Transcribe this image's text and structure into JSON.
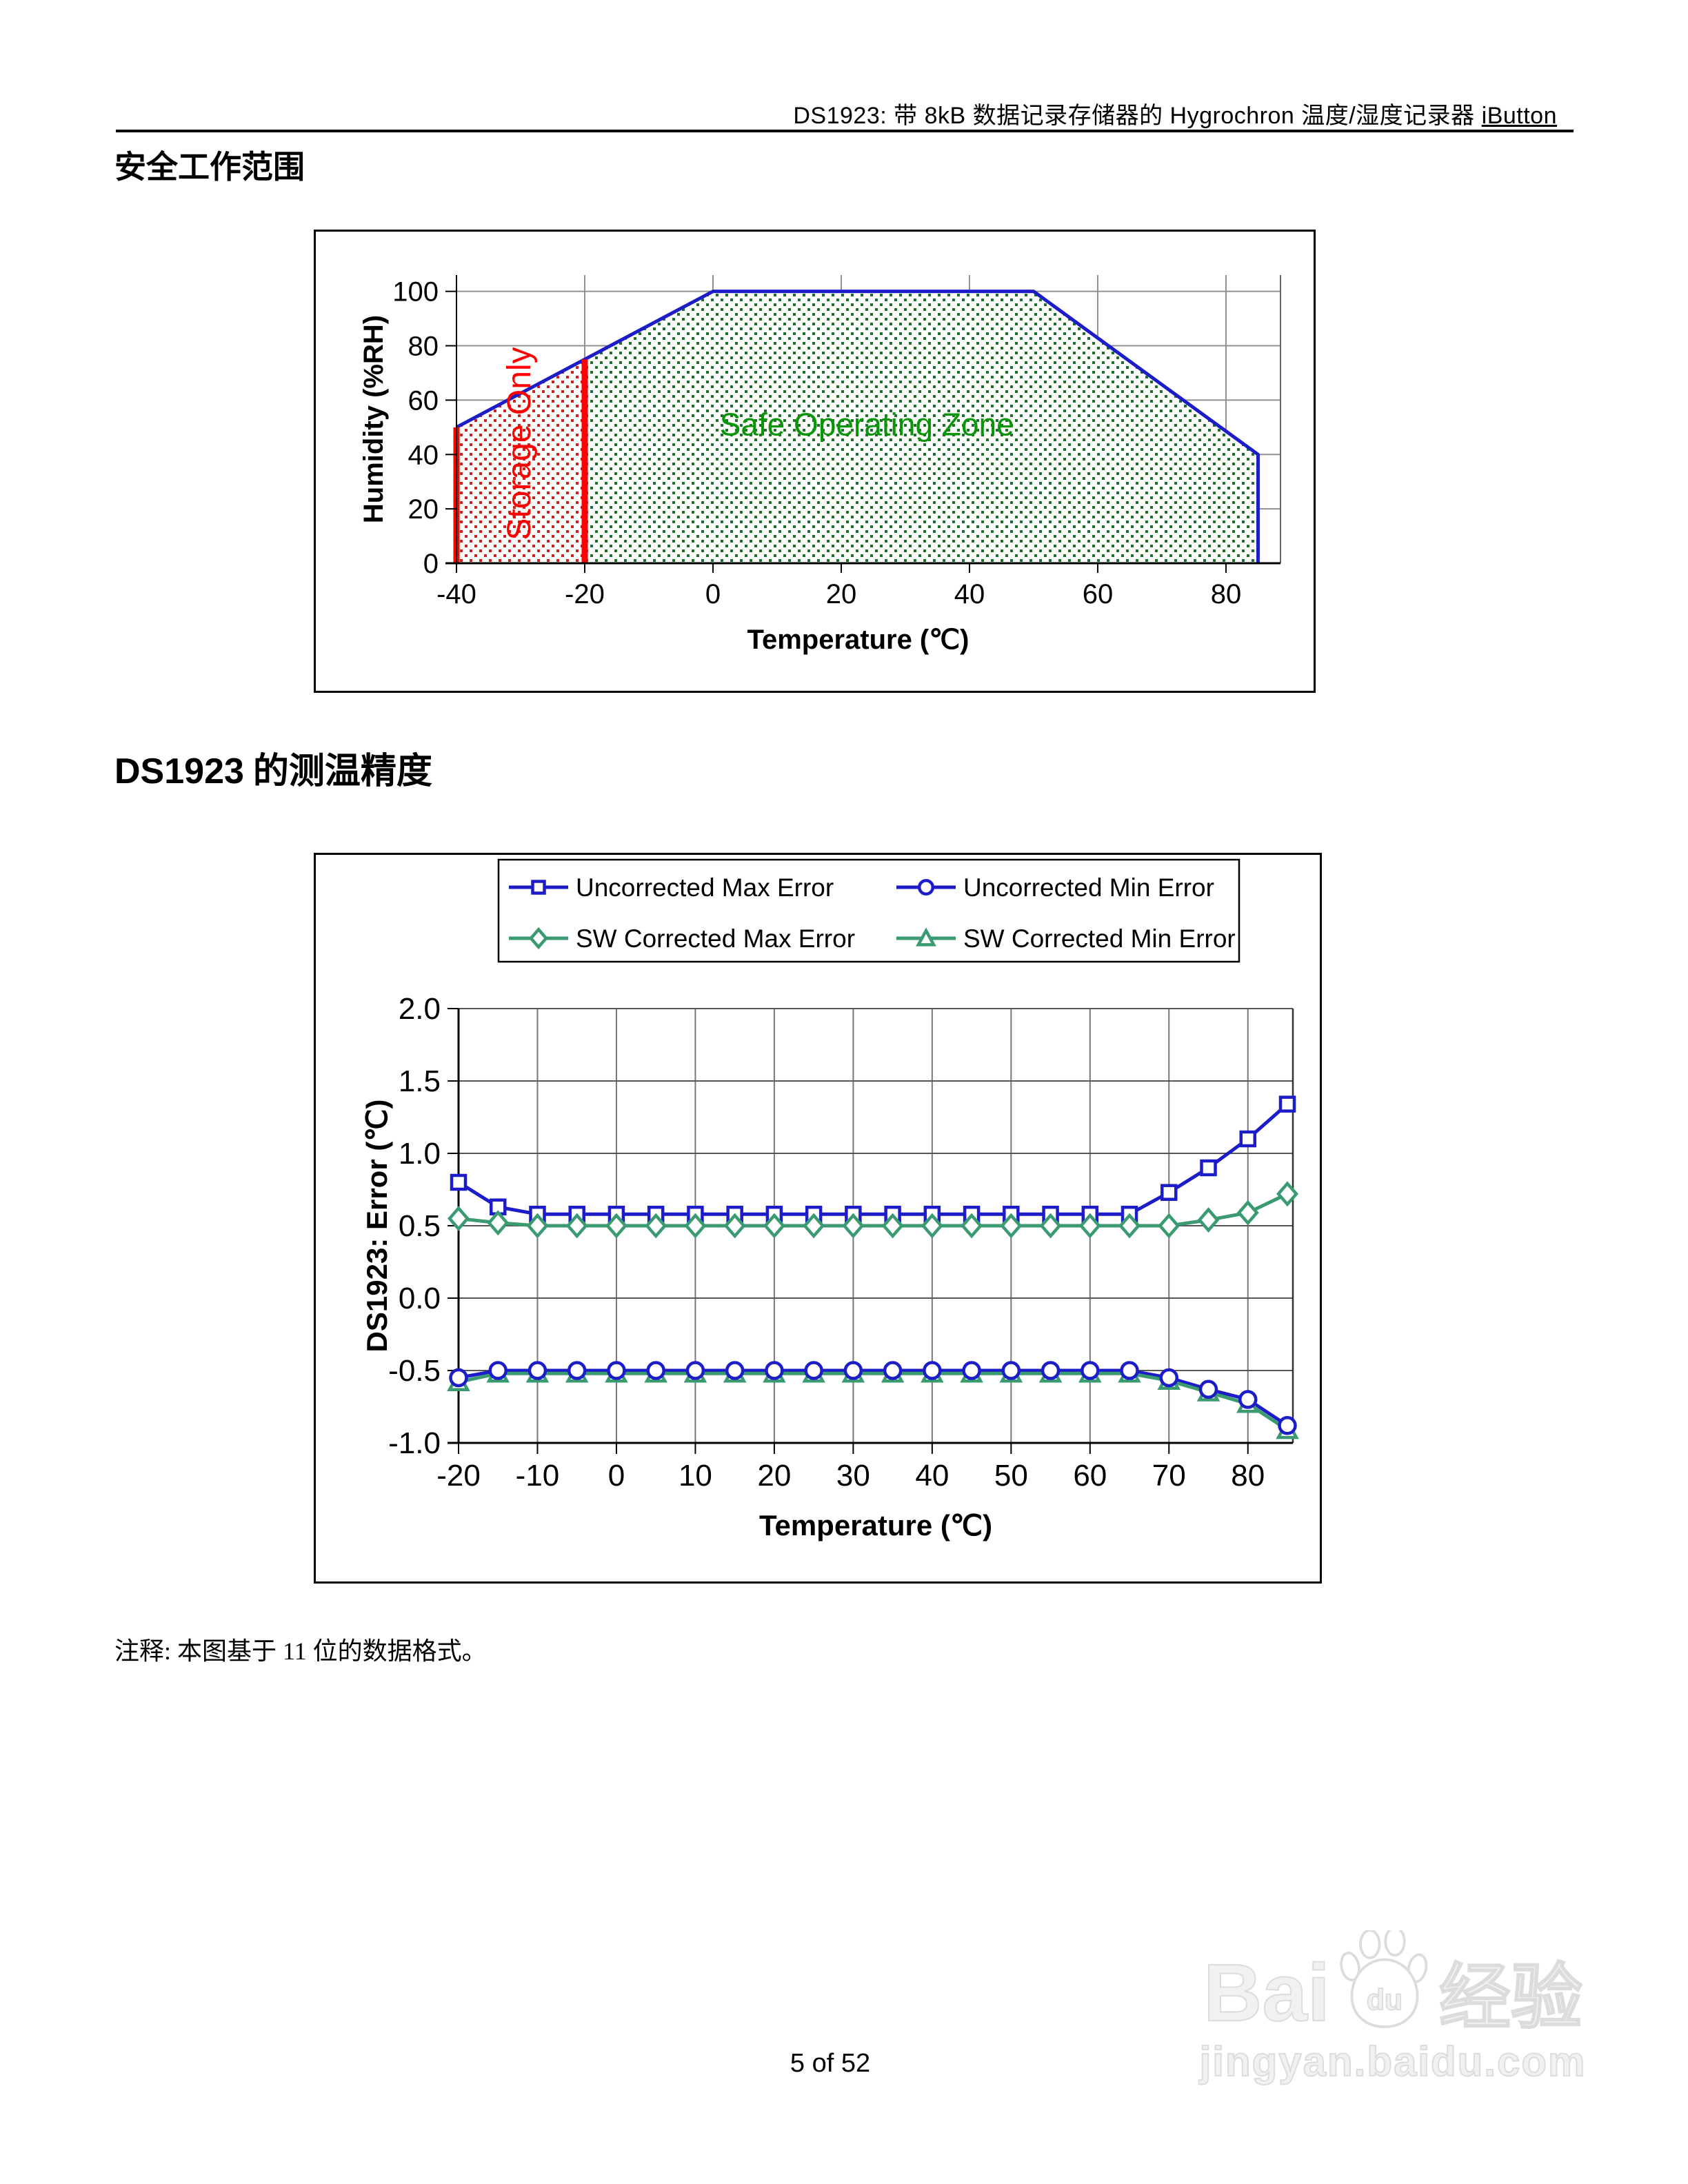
{
  "page": {
    "header_main": "DS1923: 带 8kB 数据记录存储器的 Hygrochron 温度/湿度记录器 ",
    "header_suffix": "iButton",
    "section1_title": "安全工作范围",
    "section2_title_latin": "DS1923",
    "section2_title_cjk": " 的测温精度",
    "note": "注释: 本图基于 11 位的数据格式。",
    "footer_page": "5 of 52",
    "watermark": {
      "brand_prefix": "Bai",
      "brand_paw_text": "du",
      "brand_suffix": "经验",
      "domain": "jingyan.baidu.com"
    }
  },
  "chart_data": [
    {
      "type": "area",
      "title": "",
      "xlabel": "Temperature (℃)",
      "ylabel": "Humidity (%RH)",
      "xlim": [
        -40,
        88.5
      ],
      "ylim": [
        0,
        106
      ],
      "xticks": [
        -40,
        -20,
        0,
        20,
        40,
        60,
        80
      ],
      "yticks": [
        0,
        20,
        40,
        60,
        80,
        100
      ],
      "safe_zone_label": "Safe Operating Zone",
      "storage_zone_label": "Storage Only",
      "safe_zone_polygon": [
        [
          -20,
          0
        ],
        [
          -20,
          75
        ],
        [
          0,
          100
        ],
        [
          50,
          100
        ],
        [
          85,
          40
        ],
        [
          85,
          0
        ]
      ],
      "storage_zone_polygon": [
        [
          -40,
          0
        ],
        [
          -40,
          50
        ],
        [
          -20,
          75
        ],
        [
          -20,
          0
        ]
      ],
      "blue_boundary": [
        [
          -40,
          50
        ],
        [
          0,
          100
        ],
        [
          50,
          100
        ],
        [
          85,
          40
        ],
        [
          85,
          0
        ]
      ],
      "red_left_line": [
        [
          -40,
          0
        ],
        [
          -40,
          50
        ]
      ],
      "red_right_line": [
        [
          -20,
          0
        ],
        [
          -20,
          75
        ]
      ],
      "safe_label_pos": [
        24,
        47
      ],
      "storage_label_pos": [
        -28.5,
        44
      ],
      "colors": {
        "boundary": "#1c1cc8",
        "storage_line": "#ff0000",
        "safe_dots": "#1f6f2f",
        "storage_dots": "#cc2222",
        "safe_label": "#089608",
        "grid": "#909090",
        "axis": "#000000"
      }
    },
    {
      "type": "line",
      "title": "",
      "xlabel": "Temperature (℃)",
      "ylabel": "DS1923: Error (℃)",
      "xlim": [
        -20,
        85.7
      ],
      "ylim": [
        -1.0,
        2.0
      ],
      "xticks": [
        -20,
        -10,
        0,
        10,
        20,
        30,
        40,
        50,
        60,
        70,
        80
      ],
      "yticks": [
        -1.0,
        -0.5,
        0.0,
        0.5,
        1.0,
        1.5,
        2.0
      ],
      "ytick_labels": [
        "-1.0",
        "-0.5",
        "0.0",
        "0.5",
        "1.0",
        "1.5",
        "2.0"
      ],
      "x": [
        -20,
        -15,
        -10,
        -5,
        0,
        5,
        10,
        15,
        20,
        25,
        30,
        35,
        40,
        45,
        50,
        55,
        60,
        65,
        70,
        75,
        80,
        85
      ],
      "series": [
        {
          "name": "Uncorrected Max Error",
          "marker": "square",
          "color": "#1c1cc8",
          "values": [
            0.8,
            0.63,
            0.58,
            0.58,
            0.58,
            0.58,
            0.58,
            0.58,
            0.58,
            0.58,
            0.58,
            0.58,
            0.58,
            0.58,
            0.58,
            0.58,
            0.58,
            0.58,
            0.73,
            0.9,
            1.1,
            1.34
          ]
        },
        {
          "name": "Uncorrected Min Error",
          "marker": "circle",
          "color": "#1c1cc8",
          "values": [
            -0.55,
            -0.5,
            -0.5,
            -0.5,
            -0.5,
            -0.5,
            -0.5,
            -0.5,
            -0.5,
            -0.5,
            -0.5,
            -0.5,
            -0.5,
            -0.5,
            -0.5,
            -0.5,
            -0.5,
            -0.5,
            -0.55,
            -0.63,
            -0.7,
            -0.88
          ]
        },
        {
          "name": "SW Corrected Max Error",
          "marker": "diamond",
          "color": "#3a9a70",
          "values": [
            0.55,
            0.52,
            0.5,
            0.5,
            0.5,
            0.5,
            0.5,
            0.5,
            0.5,
            0.5,
            0.5,
            0.5,
            0.5,
            0.5,
            0.5,
            0.5,
            0.5,
            0.5,
            0.5,
            0.54,
            0.59,
            0.72
          ]
        },
        {
          "name": "SW Corrected Min Error",
          "marker": "triangle",
          "color": "#3a9a70",
          "values": [
            -0.58,
            -0.52,
            -0.52,
            -0.52,
            -0.52,
            -0.52,
            -0.52,
            -0.52,
            -0.52,
            -0.52,
            -0.52,
            -0.52,
            -0.52,
            -0.52,
            -0.52,
            -0.52,
            -0.52,
            -0.52,
            -0.57,
            -0.65,
            -0.73,
            -0.91
          ]
        }
      ],
      "legend_position": "top",
      "grid": true,
      "colors": {
        "grid": "#777777",
        "axis": "#000000",
        "border": "#333333"
      }
    }
  ]
}
